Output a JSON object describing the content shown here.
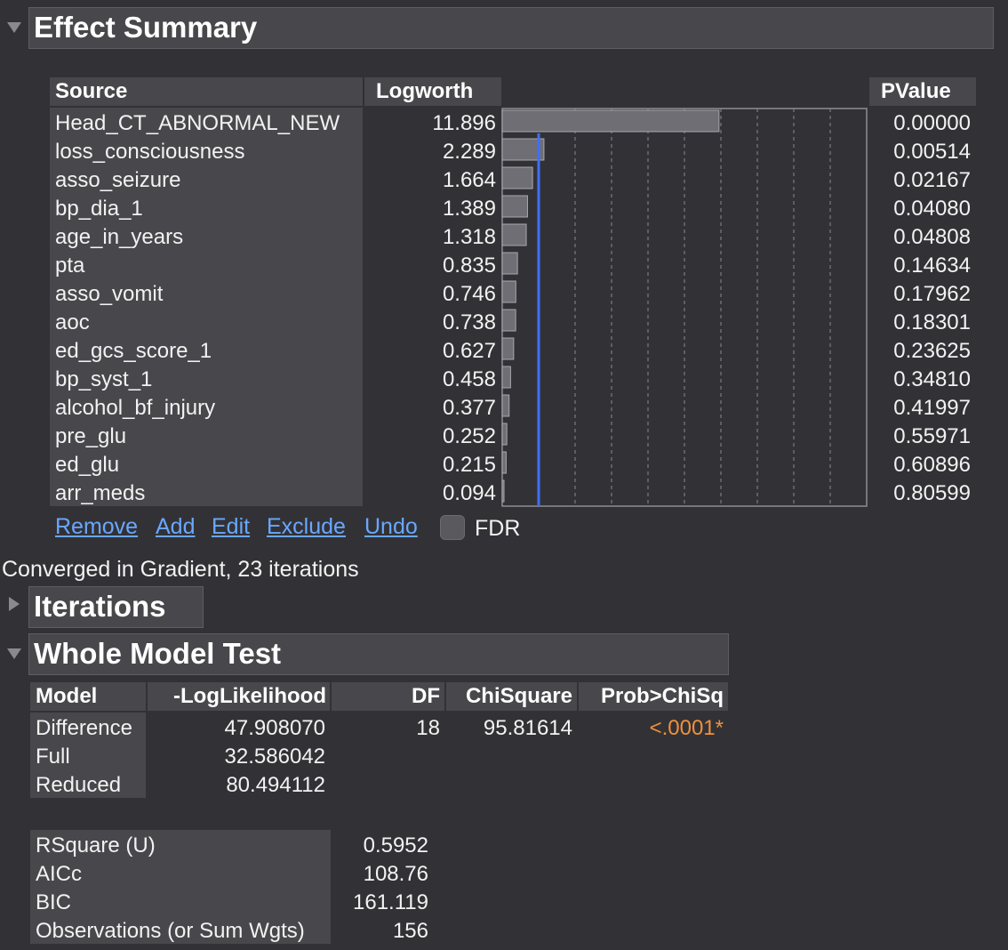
{
  "effect_summary": {
    "title": "Effect Summary",
    "columns": {
      "source": "Source",
      "logworth": "Logworth",
      "pvalue": "PValue"
    },
    "rows": [
      {
        "source": "Head_CT_ABNORMAL_NEW",
        "logworth": "11.896",
        "pvalue": "0.00000"
      },
      {
        "source": "loss_consciousness",
        "logworth": "2.289",
        "pvalue": "0.00514"
      },
      {
        "source": "asso_seizure",
        "logworth": "1.664",
        "pvalue": "0.02167"
      },
      {
        "source": "bp_dia_1",
        "logworth": "1.389",
        "pvalue": "0.04080"
      },
      {
        "source": "age_in_years",
        "logworth": "1.318",
        "pvalue": "0.04808"
      },
      {
        "source": "pta",
        "logworth": "0.835",
        "pvalue": "0.14634"
      },
      {
        "source": "asso_vomit",
        "logworth": "0.746",
        "pvalue": "0.17962"
      },
      {
        "source": "aoc",
        "logworth": "0.738",
        "pvalue": "0.18301"
      },
      {
        "source": "ed_gcs_score_1",
        "logworth": "0.627",
        "pvalue": "0.23625"
      },
      {
        "source": "bp_syst_1",
        "logworth": "0.458",
        "pvalue": "0.34810"
      },
      {
        "source": "alcohol_bf_injury",
        "logworth": "0.377",
        "pvalue": "0.41997"
      },
      {
        "source": "pre_glu",
        "logworth": "0.252",
        "pvalue": "0.55971"
      },
      {
        "source": "ed_glu",
        "logworth": "0.215",
        "pvalue": "0.60896"
      },
      {
        "source": "arr_meds",
        "logworth": "0.094",
        "pvalue": "0.80599"
      }
    ],
    "actions": {
      "remove": "Remove",
      "add": "Add",
      "edit": "Edit",
      "exclude": "Exclude",
      "undo": "Undo",
      "fdr": "FDR"
    },
    "fdr_checked": false
  },
  "chart_data": {
    "type": "bar",
    "orientation": "horizontal",
    "categories": [
      "Head_CT_ABNORMAL_NEW",
      "loss_consciousness",
      "asso_seizure",
      "bp_dia_1",
      "age_in_years",
      "pta",
      "asso_vomit",
      "aoc",
      "ed_gcs_score_1",
      "bp_syst_1",
      "alcohol_bf_injury",
      "pre_glu",
      "ed_glu",
      "arr_meds"
    ],
    "values": [
      11.896,
      2.289,
      1.664,
      1.389,
      1.318,
      0.835,
      0.746,
      0.738,
      0.627,
      0.458,
      0.377,
      0.252,
      0.215,
      0.094
    ],
    "xlim": [
      0,
      20
    ],
    "gridlines": [
      2,
      4,
      6,
      8,
      10,
      12,
      14,
      16,
      18
    ],
    "reference_line": 2,
    "bar_color": "#6e6e74",
    "reference_color": "#3d6fff"
  },
  "status": {
    "converged": "Converged in Gradient, 23 iterations"
  },
  "iterations": {
    "title": "Iterations"
  },
  "whole_model_test": {
    "title": "Whole Model Test",
    "columns": {
      "model": "Model",
      "loglik": "-LogLikelihood",
      "df": "DF",
      "chisq": "ChiSquare",
      "prob": "Prob>ChiSq"
    },
    "rows": [
      {
        "model": "Difference",
        "loglik": "47.908070",
        "df": "18",
        "chisq": "95.81614",
        "prob": "<.0001*"
      },
      {
        "model": "Full",
        "loglik": "32.586042",
        "df": "",
        "chisq": "",
        "prob": ""
      },
      {
        "model": "Reduced",
        "loglik": "80.494112",
        "df": "",
        "chisq": "",
        "prob": ""
      }
    ],
    "stats": [
      {
        "label": "RSquare (U)",
        "value": "0.5952"
      },
      {
        "label": "AICc",
        "value": "108.76"
      },
      {
        "label": "BIC",
        "value": "161.119"
      },
      {
        "label": "Observations (or Sum Wgts)",
        "value": "156"
      }
    ]
  },
  "colors": {
    "background": "#323236",
    "panel": "#48484c",
    "link": "#6aa7ff",
    "significant": "#f0913a"
  }
}
